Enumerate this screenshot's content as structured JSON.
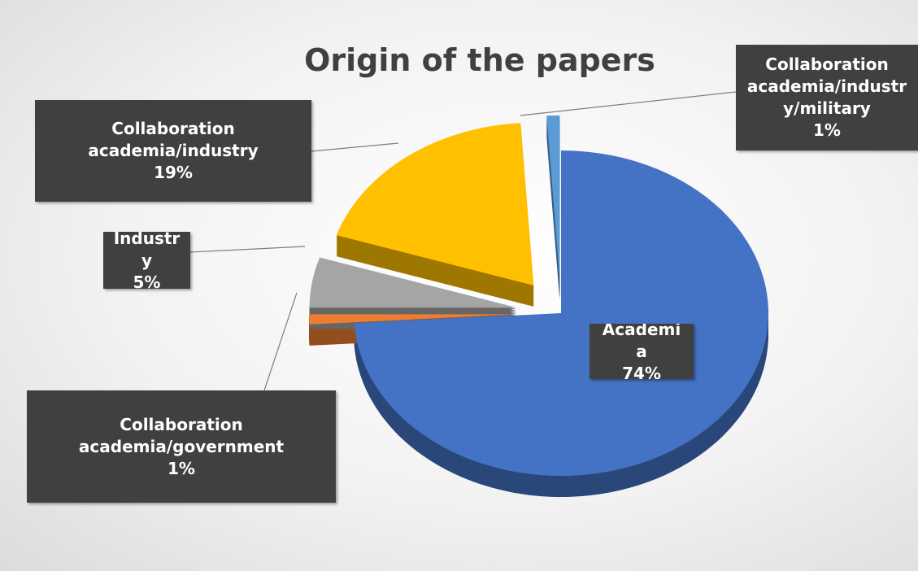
{
  "chart_data": {
    "type": "pie",
    "title": "Origin of the papers",
    "categories": [
      "Academia",
      "Collaboration academia/government",
      "Industry",
      "Collaboration academia/industry",
      "Collaboration academia/industry/military"
    ],
    "values": [
      74,
      1,
      5,
      19,
      1
    ],
    "value_labels": [
      "74%",
      "1%",
      "5%",
      "19%",
      "1%"
    ],
    "colors": [
      "#4472c4",
      "#ed7d31",
      "#a5a5a5",
      "#ffc000",
      "#5b9bd5"
    ]
  }
}
